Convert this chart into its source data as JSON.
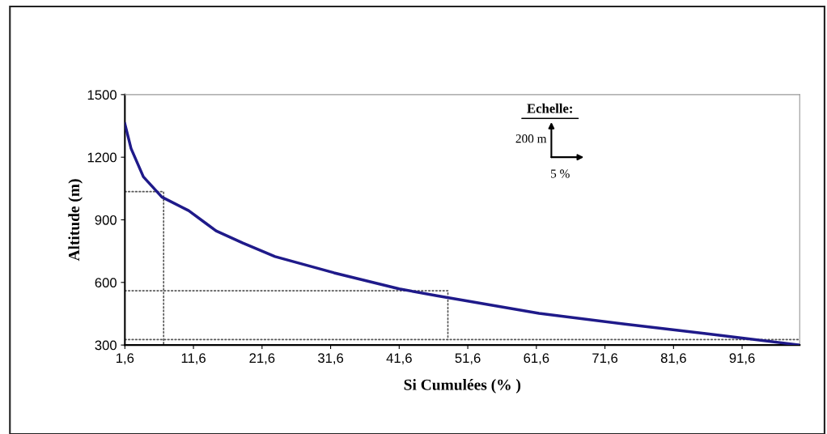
{
  "chart_data": {
    "type": "line",
    "xlabel": "Si Cumulées (% )",
    "ylabel": "Altitude (m)",
    "x": [
      1.6,
      2.5,
      4.3,
      7.0,
      10.9,
      14.9,
      18.8,
      23.5,
      32.1,
      41.6,
      47.1,
      62,
      74.5,
      86.3,
      100
    ],
    "series": [
      {
        "color": "#1f1a8a",
        "values": [
          1360,
          1242,
          1106,
          1009,
          944,
          847,
          789,
          724,
          646,
          569,
          536,
          452,
          400,
          355,
          300
        ]
      },
      {
        "type": "line",
        "color": "#555555",
        "line_style": "dotted",
        "x": [
          1.6,
          7.25,
          7.25
        ],
        "values": [
          1035,
          1035,
          300
        ]
      },
      {
        "type": "line",
        "color": "#555555",
        "line_style": "dotted",
        "x": [
          1.6,
          48.7,
          48.7
        ],
        "values": [
          560,
          560,
          326
        ]
      },
      {
        "type": "line",
        "color": "#555555",
        "line_style": "dotted",
        "x": [
          1.6,
          100
        ],
        "values": [
          326,
          326
        ]
      }
    ],
    "xlim": [
      1.6,
      100
    ],
    "ylim": [
      300,
      1500
    ],
    "xticks": [
      {
        "value": 1.6,
        "label": "1,6"
      },
      {
        "value": 11.6,
        "label": "11,6"
      },
      {
        "value": 21.6,
        "label": "21,6"
      },
      {
        "value": 31.6,
        "label": "31,6"
      },
      {
        "value": 41.6,
        "label": "41,6"
      },
      {
        "value": 51.6,
        "label": "51,6"
      },
      {
        "value": 61.6,
        "label": "61,6"
      },
      {
        "value": 71.6,
        "label": "71,6"
      },
      {
        "value": 81.6,
        "label": "81,6"
      },
      {
        "value": 91.6,
        "label": "91,6"
      }
    ],
    "yticks": [
      300,
      600,
      900,
      1200,
      1500
    ],
    "annotations": [
      "Echelle:",
      "200 m",
      "5 %"
    ],
    "grid": false,
    "legend": false,
    "line_style": "solid",
    "marker": "none"
  }
}
